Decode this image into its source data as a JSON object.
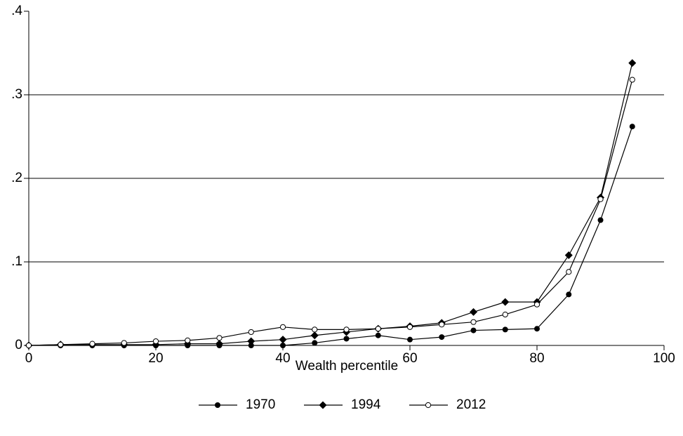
{
  "chart_data": {
    "type": "line",
    "x_label": "Wealth percentile",
    "x": [
      0,
      5,
      10,
      15,
      20,
      25,
      30,
      35,
      40,
      45,
      50,
      55,
      60,
      65,
      70,
      75,
      80,
      85,
      90,
      95
    ],
    "series": [
      {
        "name": "1970",
        "color": "#000000",
        "marker": "circle",
        "values": [
          0,
          0,
          0,
          0,
          0,
          0,
          0,
          0,
          0,
          0.003,
          0.008,
          0.012,
          0.007,
          0.01,
          0.018,
          0.019,
          0.02,
          0.061,
          0.15,
          0.262
        ]
      },
      {
        "name": "1994",
        "color": "#000000",
        "marker": "diamond",
        "values": [
          0,
          0.001,
          0.001,
          0.001,
          0.001,
          0.002,
          0.002,
          0.005,
          0.007,
          0.012,
          0.016,
          0.02,
          0.023,
          0.027,
          0.04,
          0.052,
          0.052,
          0.108,
          0.177,
          0.338
        ]
      },
      {
        "name": "2012",
        "color": "#000000",
        "marker": "hollow-circle",
        "values": [
          0,
          0.001,
          0.002,
          0.003,
          0.005,
          0.006,
          0.009,
          0.016,
          0.022,
          0.019,
          0.019,
          0.02,
          0.022,
          0.025,
          0.028,
          0.037,
          0.049,
          0.088,
          0.175,
          0.318
        ]
      }
    ],
    "xlim": [
      0,
      100
    ],
    "xticks": [
      0,
      20,
      40,
      60,
      80,
      100
    ],
    "ylim": [
      0,
      0.4
    ],
    "yticks": [
      0,
      {
        "value": 0.1,
        "label": ".1"
      },
      {
        "value": 0.2,
        "label": ".2"
      },
      {
        "value": 0.3,
        "label": ".3"
      },
      {
        "value": 0.4,
        "label": ".4"
      }
    ],
    "grid": true,
    "legend": "bottom"
  }
}
